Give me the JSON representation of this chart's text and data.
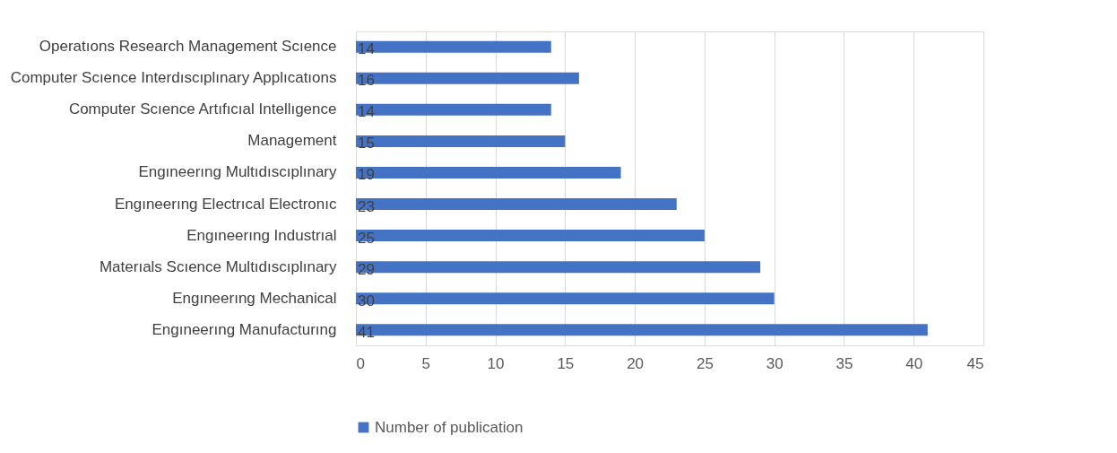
{
  "chart_data": {
    "type": "bar",
    "orientation": "horizontal",
    "categories": [
      "Operatıons Research Management Scıence",
      "Computer Scıence Interdıscıplınary Applıcatıons",
      "Computer Scıence Artıfıcıal Intellıgence",
      "Management",
      "Engıneerıng Multıdıscıplınary",
      "Engıneerıng Electrıcal Electronıc",
      "Engıneerıng Industrıal",
      "Materıals Scıence Multıdıscıplınary",
      "Engıneerıng Mechanical",
      "Engıneerıng Manufacturıng"
    ],
    "series": [
      {
        "name": "Number of publication",
        "color": "#4472c4",
        "values": [
          14,
          16,
          14,
          15,
          19,
          23,
          25,
          29,
          30,
          41
        ]
      }
    ],
    "xlim": [
      0,
      45
    ],
    "xticks": [
      0,
      5,
      10,
      15,
      20,
      25,
      30,
      35,
      40,
      45
    ],
    "grid": "x",
    "legend": "bottom",
    "data_labels": true
  }
}
